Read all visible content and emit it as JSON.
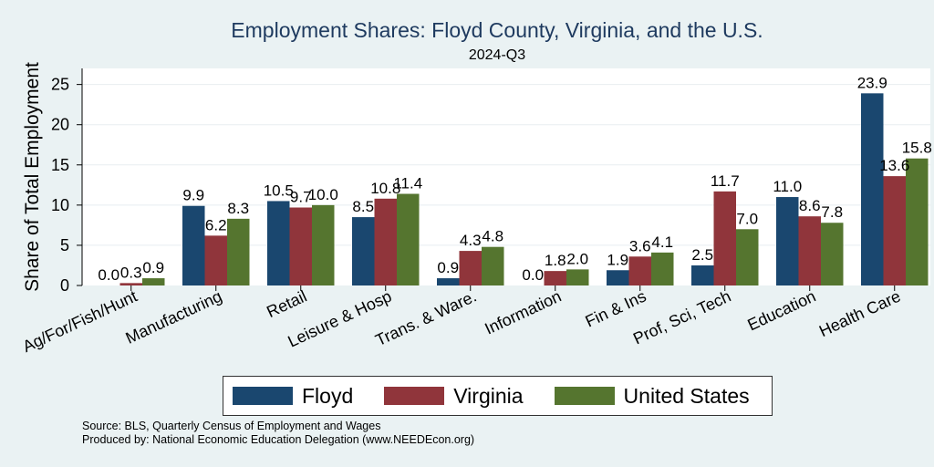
{
  "chart_data": {
    "type": "bar",
    "title": "Employment Shares: Floyd County, Virginia, and the U.S.",
    "subtitle": "2024-Q3",
    "xlabel": "",
    "ylabel": "Share of Total Employment",
    "ylim": [
      0,
      27
    ],
    "yticks": [
      0,
      5,
      10,
      15,
      20,
      25
    ],
    "categories": [
      "Ag/For/Fish/Hunt",
      "Manufacturing",
      "Retail",
      "Leisure & Hosp",
      "Trans. & Ware.",
      "Information",
      "Fin & Ins",
      "Prof, Sci, Tech",
      "Education",
      "Health Care"
    ],
    "series": [
      {
        "name": "Floyd",
        "color": "#1a476f",
        "values": [
          0.0,
          9.9,
          10.5,
          8.5,
          0.9,
          0.0,
          1.9,
          2.5,
          11.0,
          23.9
        ]
      },
      {
        "name": "Virginia",
        "color": "#90353b",
        "values": [
          0.3,
          6.2,
          9.7,
          10.8,
          4.3,
          1.8,
          3.6,
          11.7,
          8.6,
          13.6
        ]
      },
      {
        "name": "United States",
        "color": "#55752f",
        "values": [
          0.9,
          8.3,
          10.0,
          11.4,
          4.8,
          2.0,
          4.1,
          7.0,
          7.8,
          15.8
        ]
      }
    ],
    "legend_position": "bottom",
    "grid": true
  },
  "notes": {
    "source": "Source: BLS, Quarterly Census of Employment and Wages",
    "produced": "Produced by: National Economic Education Delegation (www.NEEDEcon.org)"
  }
}
